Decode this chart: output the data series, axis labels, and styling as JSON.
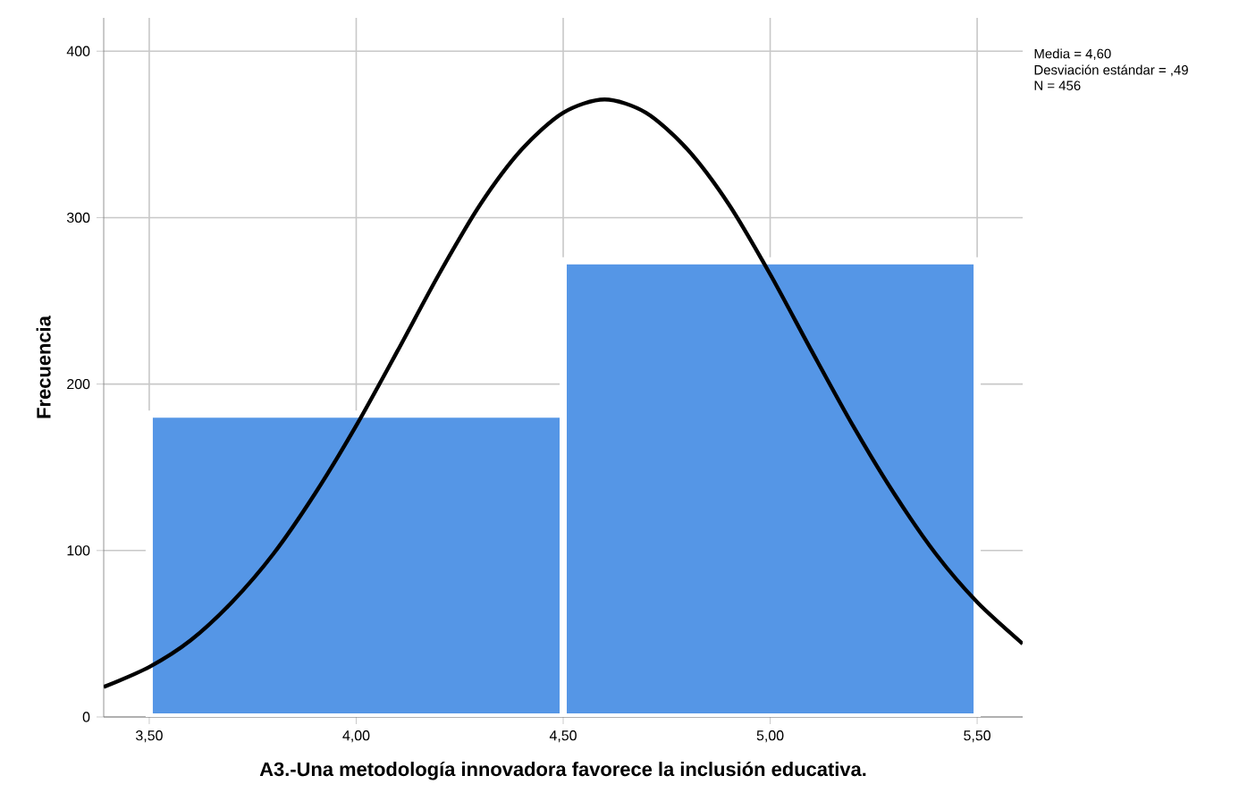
{
  "chart_data": {
    "type": "histogram",
    "xlabel": "A3.-Una metodología innovadora favorece la inclusión educativa.",
    "ylabel": "Frecuencia",
    "annotations": [
      "Media = 4,60",
      "Desviación estándar = ,49",
      "N = 456"
    ],
    "series": [
      {
        "bins": [
          3.5,
          4.5,
          5.5
        ],
        "values": [
          182,
          274
        ],
        "color": "#5596e6"
      },
      {
        "type": "line",
        "color": "#000000",
        "x": [
          3.39,
          3.5,
          3.6,
          3.7,
          3.8,
          3.9,
          4.0,
          4.1,
          4.2,
          4.3,
          4.4,
          4.5,
          4.6,
          4.7,
          4.8,
          4.9,
          5.0,
          5.1,
          5.2,
          5.3,
          5.4,
          5.5,
          5.61
        ],
        "values": [
          18,
          30,
          46,
          69,
          98,
          134,
          175,
          220,
          266,
          308,
          341,
          363,
          371,
          363,
          341,
          308,
          266,
          220,
          175,
          134,
          98,
          69,
          44
        ]
      }
    ],
    "xlim": [
      3.39,
      5.61
    ],
    "ylim": [
      0,
      420
    ],
    "xticks": [
      {
        "value": 3.5,
        "label": "3,50"
      },
      {
        "value": 4.0,
        "label": "4,00"
      },
      {
        "value": 4.5,
        "label": "4,50"
      },
      {
        "value": 5.0,
        "label": "5,00"
      },
      {
        "value": 5.5,
        "label": "5,50"
      }
    ],
    "yticks": [
      0,
      100,
      200,
      300,
      400
    ],
    "grid": true,
    "marker": "none",
    "line_style": "solid"
  }
}
